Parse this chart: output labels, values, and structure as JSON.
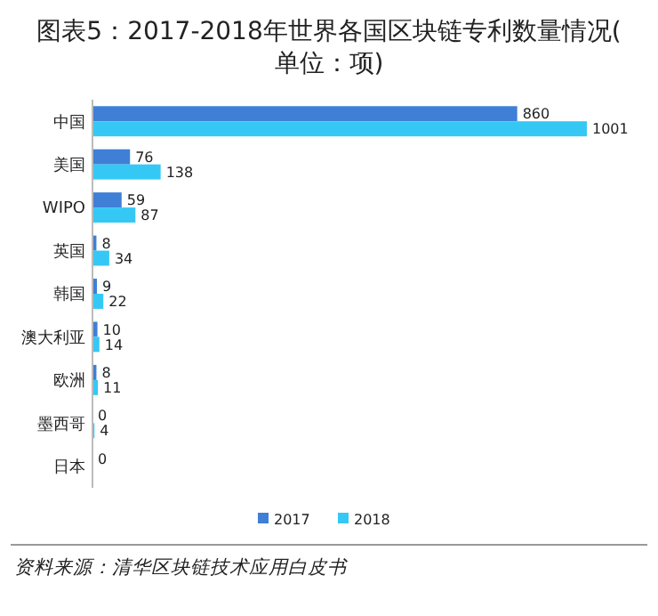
{
  "chart_data": {
    "type": "bar",
    "orientation": "horizontal",
    "title": "图表5：2017-2018年世界各国区块链专利数量情况(单位：项)",
    "categories": [
      "中国",
      "美国",
      "WIPO",
      "英国",
      "韩国",
      "澳大利亚",
      "欧洲",
      "墨西哥",
      "日本"
    ],
    "series": [
      {
        "name": "2017",
        "color": "#3f7fd6",
        "values": [
          860,
          76,
          59,
          8,
          9,
          10,
          8,
          0,
          0
        ]
      },
      {
        "name": "2018",
        "color": "#35c8f5",
        "values": [
          1001,
          138,
          87,
          34,
          22,
          14,
          11,
          4,
          0
        ],
        "value_labels": [
          "1001",
          "138",
          "87",
          "34",
          "22",
          "14",
          "11",
          "4",
          null
        ]
      }
    ],
    "data_labels": true,
    "legend": "bottom",
    "annotations": [
      "资料来源：清华区块链技术应用白皮书"
    ]
  }
}
